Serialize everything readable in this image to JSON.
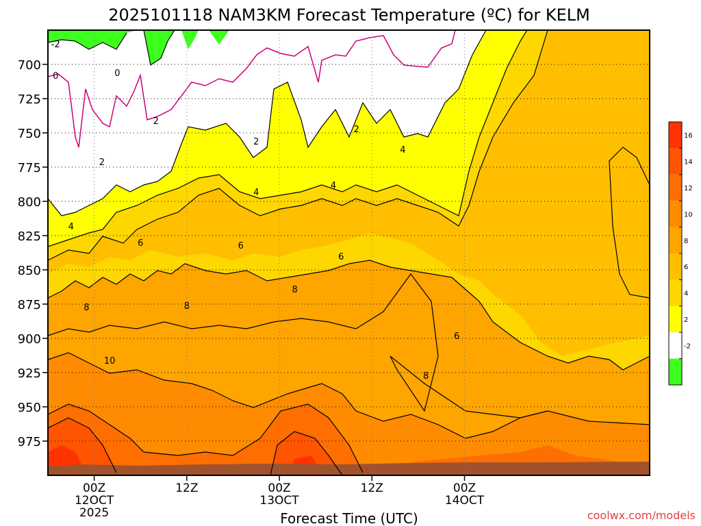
{
  "chart_data": {
    "type": "contour",
    "title": "2025101118 NAM3KM Forecast Temperature (ºC) for KELM",
    "xlabel": "Forecast Time (UTC)",
    "ylabel": "",
    "y_axis": {
      "scale": "pressure (reversed)",
      "ticks": [
        700,
        725,
        750,
        775,
        800,
        825,
        850,
        875,
        900,
        925,
        950,
        975
      ],
      "range": [
        1000,
        675
      ],
      "grid": "dotted"
    },
    "x_axis": {
      "range_hours": [
        -6,
        72
      ],
      "ticks": [
        {
          "hour": 0,
          "lines": [
            "00Z",
            "12OCT",
            "2025"
          ]
        },
        {
          "hour": 12,
          "lines": [
            "12Z"
          ]
        },
        {
          "hour": 24,
          "lines": [
            "00Z",
            "13OCT"
          ]
        },
        {
          "hour": 36,
          "lines": [
            "12Z"
          ]
        },
        {
          "hour": 48,
          "lines": [
            "00Z",
            "14OCT"
          ]
        }
      ],
      "grid": "dotted"
    },
    "contour_labels": [
      {
        "text": "-2",
        "hour": -5,
        "p": 685
      },
      {
        "text": "0",
        "hour": -5,
        "p": 708
      },
      {
        "text": "0",
        "hour": 3,
        "p": 706
      },
      {
        "text": "2",
        "hour": 8,
        "p": 741
      },
      {
        "text": "2",
        "hour": 1,
        "p": 771
      },
      {
        "text": "2",
        "hour": 21,
        "p": 756
      },
      {
        "text": "2",
        "hour": 34,
        "p": 747
      },
      {
        "text": "4",
        "hour": -3,
        "p": 818
      },
      {
        "text": "4",
        "hour": 21,
        "p": 793
      },
      {
        "text": "4",
        "hour": 31,
        "p": 788
      },
      {
        "text": "4",
        "hour": 40,
        "p": 762
      },
      {
        "text": "6",
        "hour": 6,
        "p": 830
      },
      {
        "text": "6",
        "hour": 19,
        "p": 832
      },
      {
        "text": "6",
        "hour": 32,
        "p": 840
      },
      {
        "text": "6",
        "hour": 47,
        "p": 898
      },
      {
        "text": "8",
        "hour": -1,
        "p": 877
      },
      {
        "text": "8",
        "hour": 12,
        "p": 876
      },
      {
        "text": "8",
        "hour": 26,
        "p": 864
      },
      {
        "text": "8",
        "hour": 43,
        "p": 927
      },
      {
        "text": "10",
        "hour": 2,
        "p": 916
      }
    ],
    "colorbar": {
      "levels": [
        -2,
        2,
        4,
        6,
        8,
        10,
        12,
        14,
        16
      ],
      "bands": [
        {
          "label": "",
          "color": "#3dff1d"
        },
        {
          "label": "-2",
          "color": "#ffffff"
        },
        {
          "label": "2",
          "color": "#ffff00"
        },
        {
          "label": "4",
          "color": "#ffd700"
        },
        {
          "label": "6",
          "color": "#ffbf00"
        },
        {
          "label": "8",
          "color": "#ffa500"
        },
        {
          "label": "10",
          "color": "#ff8c00"
        },
        {
          "label": "12",
          "color": "#ff6e00"
        },
        {
          "label": "14",
          "color": "#ff5500"
        },
        {
          "label": "16",
          "color": "#ff3300"
        }
      ]
    },
    "colors": {
      "ground": "#a0522d",
      "zero_line": "#cc0077"
    }
  },
  "credit": "coolwx.com/models"
}
